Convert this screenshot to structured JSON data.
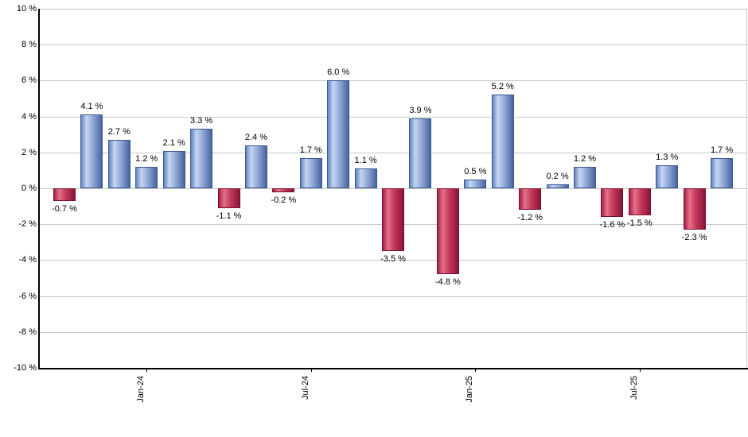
{
  "chart_data": {
    "type": "bar",
    "values": [
      -0.7,
      4.1,
      2.7,
      1.2,
      2.1,
      3.3,
      -1.1,
      2.4,
      -0.2,
      1.7,
      6.0,
      1.1,
      -3.5,
      3.9,
      -4.8,
      0.5,
      5.2,
      -1.2,
      0.2,
      1.2,
      -1.6,
      -1.5,
      1.3,
      -2.3,
      1.7
    ],
    "value_labels": [
      "-0.7 %",
      "4.1 %",
      "2.7 %",
      "1.2 %",
      "2.1 %",
      "3.3 %",
      "-1.1 %",
      "2.4 %",
      "-0.2 %",
      "1.7 %",
      "6.0 %",
      "1.1 %",
      "-3.5 %",
      "3.9 %",
      "-4.8 %",
      "0.5 %",
      "5.2 %",
      "-1.2 %",
      "0.2 %",
      "1.2 %",
      "-1.6 %",
      "-1.5 %",
      "1.3 %",
      "-2.3 %",
      "1.7 %"
    ],
    "ylim": [
      -10,
      10
    ],
    "grid": true,
    "legend": false,
    "y_axis": {
      "ticks": [
        {
          "label": "10 %",
          "value": 10
        },
        {
          "label": "8 %",
          "value": 8
        },
        {
          "label": "6 %",
          "value": 6
        },
        {
          "label": "4 %",
          "value": 4
        },
        {
          "label": "2 %",
          "value": 2
        },
        {
          "label": "0 %",
          "value": 0
        },
        {
          "label": "-2 %",
          "value": -2
        },
        {
          "label": "-4 %",
          "value": -4
        },
        {
          "label": "-6 %",
          "value": -6
        },
        {
          "label": "-8 %",
          "value": -8
        },
        {
          "label": "-10 %",
          "value": -10
        }
      ]
    },
    "x_axis": {
      "ticks": [
        {
          "label": "Jan-24",
          "bar_index": 3
        },
        {
          "label": "Jul-24",
          "bar_index": 9
        },
        {
          "label": "Jan-25",
          "bar_index": 15
        },
        {
          "label": "Jul-25",
          "bar_index": 21
        }
      ]
    },
    "colors": {
      "positive_gradient": [
        "#6285c1 0%",
        "#c6d6f1 26%",
        "#94abd9 55%",
        "#45649e 100%"
      ],
      "positive_border": "#3e5a8e",
      "negative_gradient": [
        "#a62045 0%",
        "#e4718a 26%",
        "#c43a5c 55%",
        "#8a1436 100%"
      ],
      "negative_border": "#7a1030",
      "gridline": "#c9c9c9",
      "axis": "#000000",
      "label_text": "#000000",
      "background": "#ffffff"
    }
  }
}
